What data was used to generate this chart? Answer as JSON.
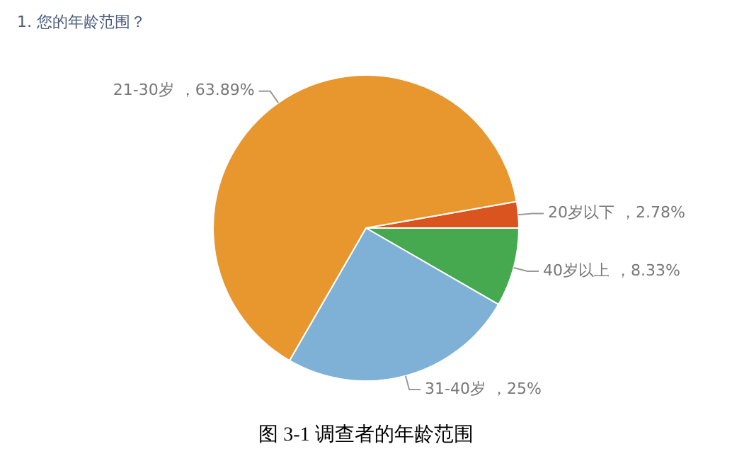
{
  "chart_data": {
    "type": "pie",
    "title": "1. 您的年龄范围？",
    "categories": [
      "20岁以下",
      "40岁以上",
      "31-40岁",
      "21-30岁"
    ],
    "values": [
      2.78,
      8.33,
      25,
      63.89
    ],
    "colors": [
      "#d9541e",
      "#46a84f",
      "#7fb0d6",
      "#e8962e"
    ],
    "value_labels": [
      "，2.78%",
      "，8.33%",
      "，25%",
      "，63.89%"
    ],
    "legend": false,
    "annotations": [
      "图 3-1  调查者的年龄范围"
    ]
  }
}
